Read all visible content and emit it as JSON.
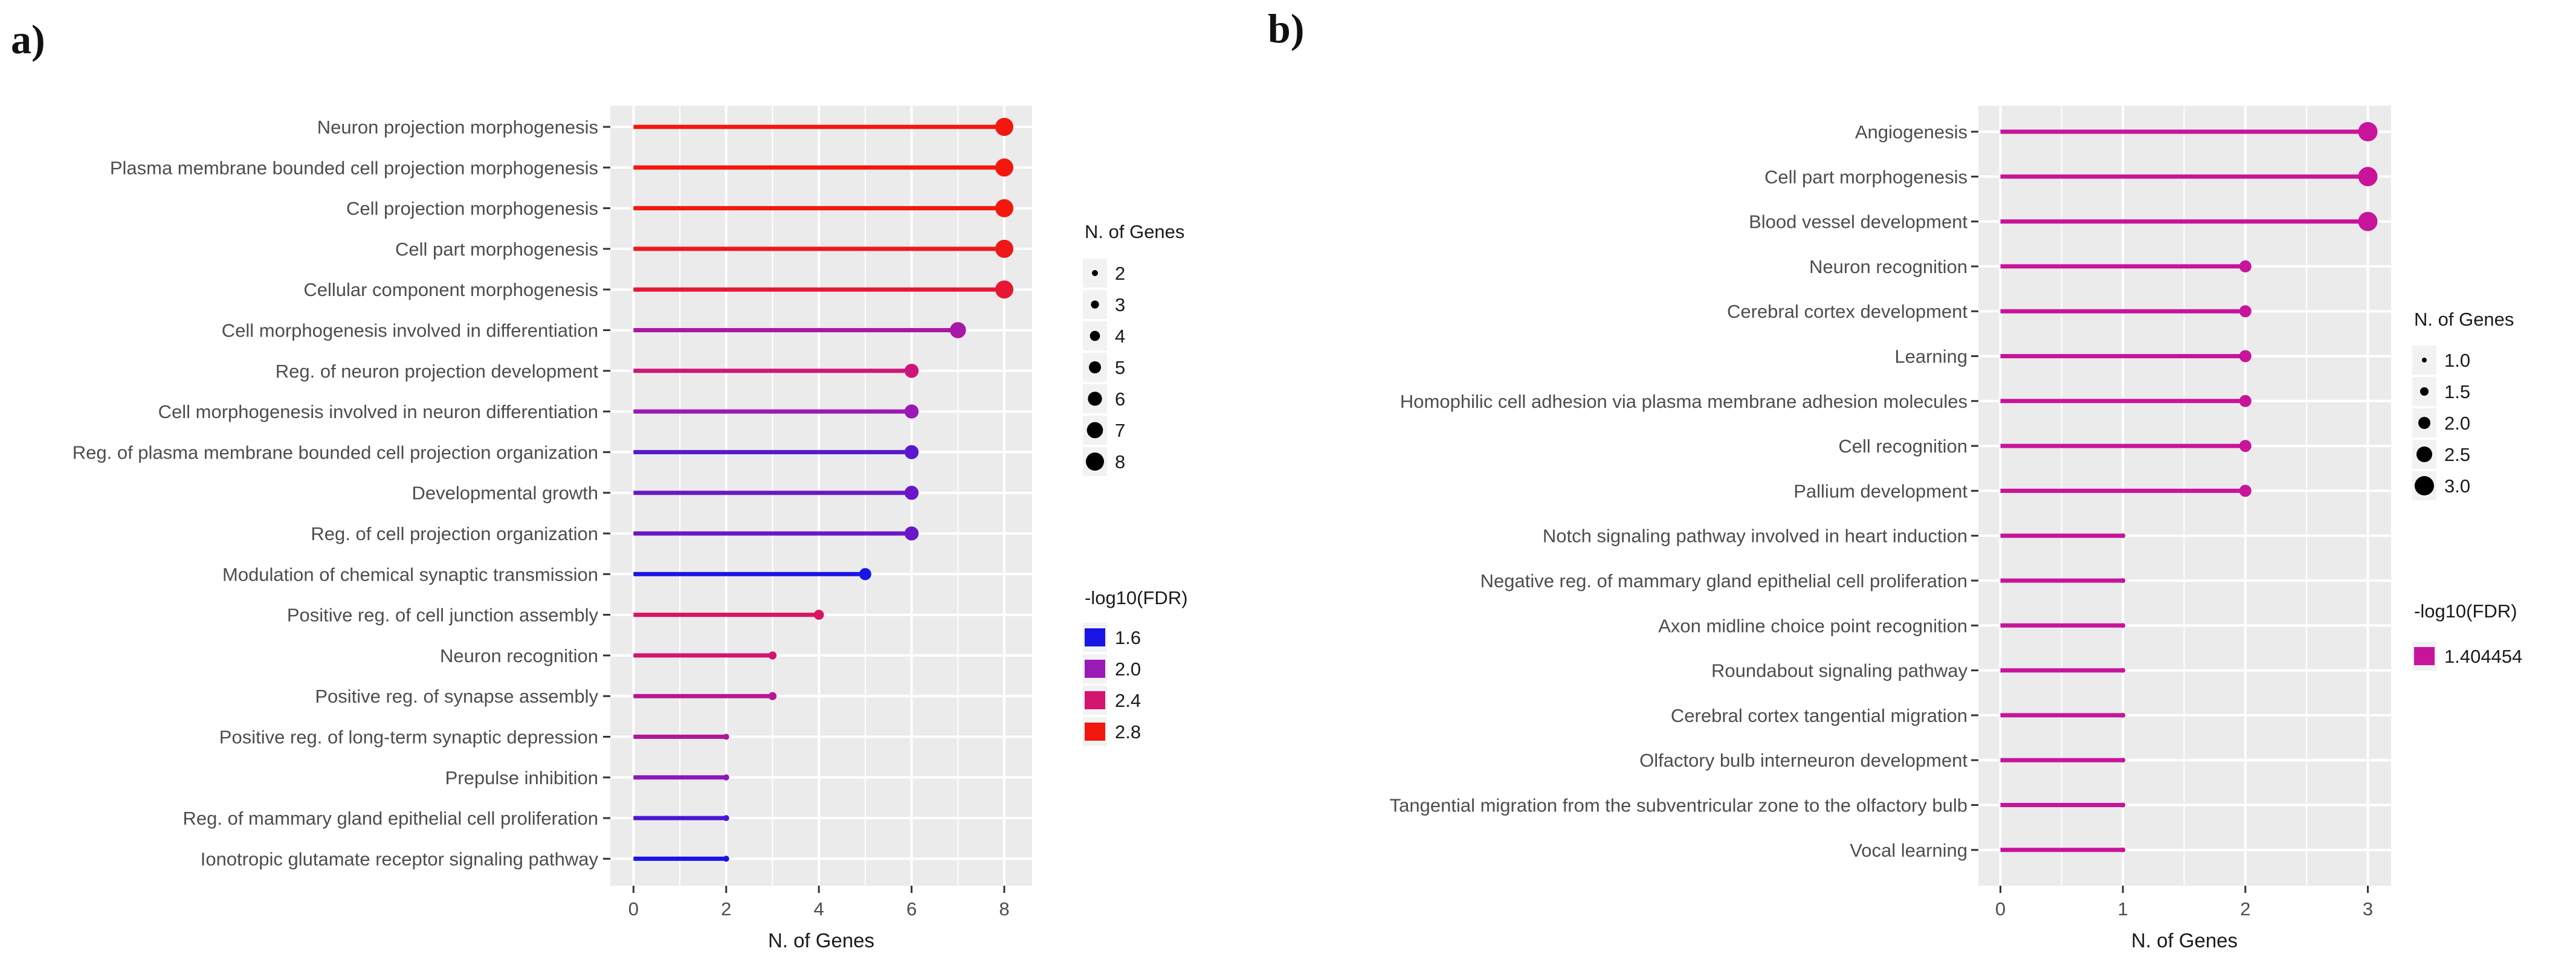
{
  "chart_data": [
    {
      "type": "lollipop",
      "panel_label": "a)",
      "xlabel": "N. of Genes",
      "xlim": [
        -0.5,
        8.6
      ],
      "xticks": [
        0,
        2,
        4,
        6,
        8
      ],
      "tick_labels": [
        "0",
        "2",
        "4",
        "6",
        "8"
      ],
      "grid": true,
      "legend_position": "right",
      "categories": [
        "Neuron projection morphogenesis",
        "Plasma membrane bounded cell projection morphogenesis",
        "Cell projection morphogenesis",
        "Cell part morphogenesis",
        "Cellular component morphogenesis",
        "Cell morphogenesis involved in differentiation",
        "Reg. of neuron projection development",
        "Cell morphogenesis involved in neuron differentiation",
        "Reg. of plasma membrane bounded cell projection organization",
        "Developmental growth",
        "Reg. of cell projection organization",
        "Modulation of chemical synaptic transmission",
        "Positive reg. of cell junction assembly",
        "Neuron recognition",
        "Positive reg. of synapse assembly",
        "Positive reg. of long-term synaptic depression",
        "Prepulse inhibition",
        "Reg. of mammary gland epithelial cell proliferation",
        "Ionotropic glutamate receptor signaling pathway"
      ],
      "values": [
        8,
        8,
        8,
        8,
        8,
        7,
        6,
        6,
        6,
        6,
        6,
        5,
        4,
        3,
        3,
        2,
        2,
        2,
        2
      ],
      "neg_log10_fdr": [
        2.85,
        2.8,
        2.8,
        2.75,
        2.65,
        2.1,
        2.35,
        2.0,
        1.8,
        1.85,
        1.85,
        1.55,
        2.45,
        2.4,
        2.2,
        2.15,
        1.95,
        1.75,
        1.6
      ],
      "size_legend": {
        "title": "N. of Genes",
        "values": [
          2,
          3,
          4,
          5,
          6,
          7,
          8
        ],
        "labels": [
          "2",
          "3",
          "4",
          "5",
          "6",
          "7",
          "8"
        ]
      },
      "color_legend": {
        "title": "-log10(FDR)",
        "values": [
          1.6,
          2.0,
          2.4,
          2.8
        ],
        "labels": [
          "1.6",
          "2.0",
          "2.4",
          "2.8"
        ],
        "colors": [
          "#1a14e6",
          "#9b19b5",
          "#d41470",
          "#f2180e"
        ]
      }
    },
    {
      "type": "lollipop",
      "panel_label": "b)",
      "xlabel": "N. of Genes",
      "xlim": [
        -0.18,
        3.19
      ],
      "xticks": [
        0,
        1,
        2,
        3
      ],
      "tick_labels": [
        "0",
        "1",
        "2",
        "3"
      ],
      "grid": true,
      "legend_position": "right",
      "categories": [
        "Angiogenesis",
        "Cell part morphogenesis",
        "Blood vessel development",
        "Neuron recognition",
        "Cerebral cortex development",
        "Learning",
        "Homophilic cell adhesion via plasma membrane adhesion molecules",
        "Cell recognition",
        "Pallium development",
        "Notch signaling pathway involved in heart induction",
        "Negative reg. of mammary gland epithelial cell proliferation",
        "Axon midline choice point recognition",
        "Roundabout signaling pathway",
        "Cerebral cortex tangential migration",
        "Olfactory bulb interneuron development",
        "Tangential migration from the subventricular zone to the olfactory bulb",
        "Vocal learning"
      ],
      "values": [
        3,
        3,
        3,
        2,
        2,
        2,
        2,
        2,
        2,
        1,
        1,
        1,
        1,
        1,
        1,
        1,
        1
      ],
      "neg_log10_fdr": [
        1.404454,
        1.404454,
        1.404454,
        1.404454,
        1.404454,
        1.404454,
        1.404454,
        1.404454,
        1.404454,
        1.404454,
        1.404454,
        1.404454,
        1.404454,
        1.404454,
        1.404454,
        1.404454,
        1.404454
      ],
      "size_legend": {
        "title": "N. of Genes",
        "values": [
          1.0,
          1.5,
          2.0,
          2.5,
          3.0
        ],
        "labels": [
          "1.0",
          "1.5",
          "2.0",
          "2.5",
          "3.0"
        ]
      },
      "color_legend": {
        "title": "-log10(FDR)",
        "values": [
          1.404454
        ],
        "labels": [
          "1.404454"
        ],
        "colors": [
          "#c8149b"
        ]
      }
    }
  ],
  "colors": {
    "panel_bg": "#ebebeb",
    "grid": "#ffffff",
    "text": "#4d4d4d",
    "title": "#1a1a1a",
    "legend_key_bg": "#f2f2f2"
  }
}
